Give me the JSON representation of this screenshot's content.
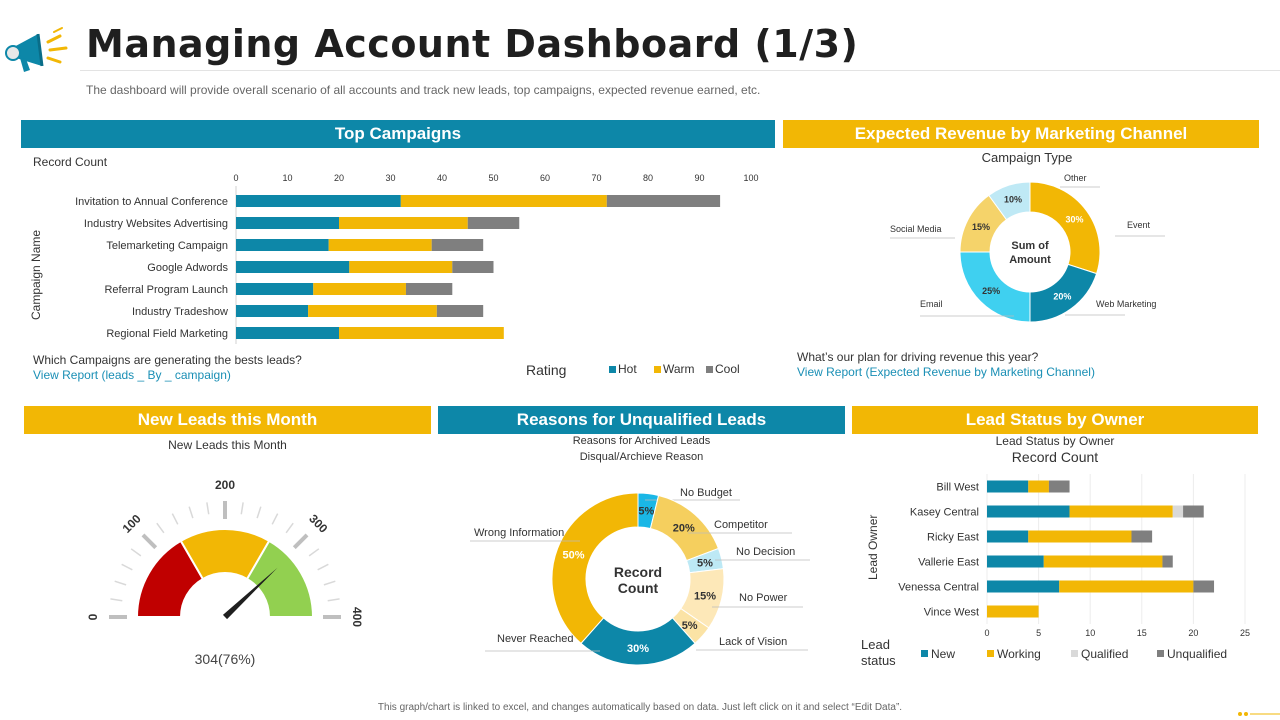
{
  "header": {
    "title": "Managing Account Dashboard (1/3)",
    "subtitle": "The dashboard will provide overall scenario of all accounts and track new leads, top campaigns, expected revenue earned, etc."
  },
  "colors": {
    "blue": "#0d87a8",
    "gold": "#f2b705",
    "gray": "#7f7f7f",
    "lightblue": "#3fd0f0",
    "lightgray": "#d9d9d9"
  },
  "top_campaigns": {
    "header": "Top Campaigns",
    "record_label": "Record Count",
    "axis_label": "Campaign Name",
    "question": "Which Campaigns are generating the bests leads?",
    "link": "View Report (leads _ By _ campaign)",
    "legend_title": "Rating"
  },
  "expected_revenue": {
    "header": "Expected Revenue by Marketing Channel",
    "chart_title": "Campaign Type",
    "center": [
      "Sum of",
      "Amount"
    ],
    "question": "What’s our plan for driving revenue this year?",
    "link": "View Report (Expected Revenue by Marketing Channel)"
  },
  "new_leads": {
    "header": "New Leads this Month",
    "chart_title": "New Leads this Month",
    "value_text": "304(76%)"
  },
  "unqualified": {
    "header": "Reasons for Unqualified Leads",
    "title1": "Reasons for Archived Leads",
    "title2": "Disqual/Archieve Reason",
    "center": [
      "Record",
      "Count"
    ]
  },
  "lead_status": {
    "header": "Lead Status by Owner",
    "title1": "Lead Status by Owner",
    "title2": "Record Count",
    "axis_label": "Lead Owner",
    "legend_title": [
      "Lead",
      "status"
    ]
  },
  "footer": "This graph/chart is linked to excel, and changes automatically based on data. Just left click on it and select “Edit Data”.",
  "chart_data": [
    {
      "type": "bar",
      "orientation": "horizontal",
      "stacked": true,
      "categories": [
        "Invitation to Annual Conference",
        "Industry Websites Advertising",
        "Telemarketing Campaign",
        "Google Adwords",
        "Referral Program Launch",
        "Industry Tradeshow",
        "Regional Field Marketing"
      ],
      "series": [
        {
          "name": "Hot",
          "values": [
            32,
            20,
            18,
            22,
            15,
            14,
            20
          ]
        },
        {
          "name": "Warm",
          "values": [
            40,
            25,
            20,
            20,
            18,
            25,
            32
          ]
        },
        {
          "name": "Cool",
          "values": [
            22,
            10,
            10,
            8,
            9,
            9,
            0
          ]
        }
      ],
      "xlim": [
        0,
        100
      ],
      "xticks": [
        0,
        10,
        20,
        30,
        40,
        50,
        60,
        70,
        80,
        90,
        100
      ],
      "ylabel": "Campaign Name",
      "legend": "bottom-right"
    },
    {
      "type": "pie",
      "donut": true,
      "slices": [
        {
          "label": "Event",
          "value": 30
        },
        {
          "label": "Web Marketing",
          "value": 20
        },
        {
          "label": "Email",
          "value": 25
        },
        {
          "label": "Social Media",
          "value": 15
        },
        {
          "label": "Other",
          "value": 10
        }
      ]
    },
    {
      "type": "gauge",
      "min": 0,
      "max": 400,
      "ticks": [
        0,
        100,
        200,
        300,
        400
      ],
      "value": 304,
      "percent": 76
    },
    {
      "type": "pie",
      "donut": true,
      "slices": [
        {
          "label": "No Budget",
          "value": 5
        },
        {
          "label": "Competitor",
          "value": 20
        },
        {
          "label": "No Decision",
          "value": 5
        },
        {
          "label": "No Power",
          "value": 15
        },
        {
          "label": "Lack of Vision",
          "value": 5
        },
        {
          "label": "Never Reached",
          "value": 30
        },
        {
          "label": "Wrong Information",
          "value": 50
        }
      ]
    },
    {
      "type": "bar",
      "orientation": "horizontal",
      "stacked": true,
      "categories": [
        "Bill West",
        "Kasey Central",
        "Ricky East",
        "Vallerie East",
        "Venessa Central",
        "Vince West"
      ],
      "series": [
        {
          "name": "New",
          "values": [
            4,
            8,
            4,
            5.5,
            7,
            0
          ]
        },
        {
          "name": "Working",
          "values": [
            2,
            10,
            10,
            11.5,
            13,
            5
          ]
        },
        {
          "name": "Qualified",
          "values": [
            0,
            1,
            0,
            0,
            0,
            0
          ]
        },
        {
          "name": "Unqualified",
          "values": [
            2,
            2,
            2,
            1,
            2,
            0
          ]
        }
      ],
      "xlim": [
        0,
        25
      ],
      "xticks": [
        0,
        5,
        10,
        15,
        20,
        25
      ],
      "ylabel": "Lead Owner",
      "legend": "bottom"
    }
  ]
}
